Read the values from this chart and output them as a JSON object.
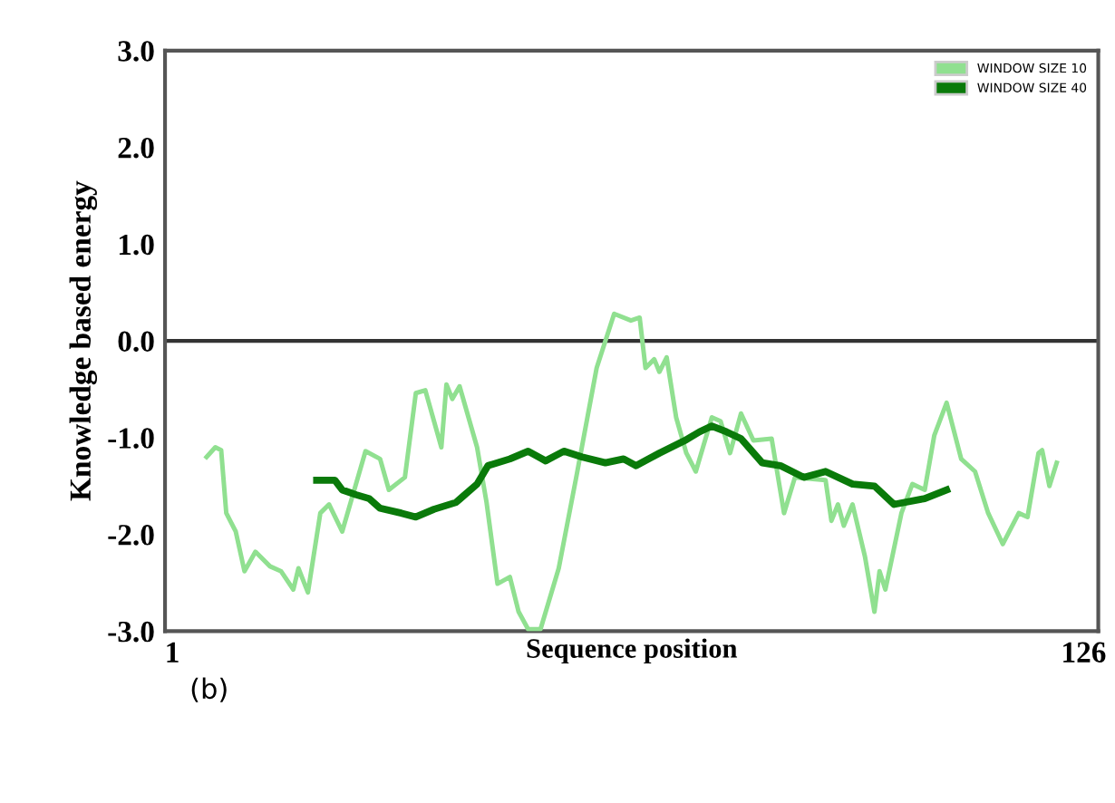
{
  "chart_data": {
    "type": "line",
    "xlabel": "Sequence position",
    "ylabel": "Knowledge based energy",
    "xlim": [
      0,
      128
    ],
    "xticks": [
      1,
      126
    ],
    "ylim": [
      -3,
      3
    ],
    "yticks": [
      {
        "value": 3,
        "label": "3.0"
      },
      {
        "value": 2,
        "label": "2.0"
      },
      {
        "value": 1,
        "label": "1.0"
      },
      {
        "value": 0,
        "label": "0.0"
      },
      {
        "value": -1,
        "label": "-1.0"
      },
      {
        "value": -2,
        "label": "-2.0"
      },
      {
        "value": -3,
        "label": "-3.0"
      }
    ],
    "grid": false,
    "legend": "top right",
    "marker": "none",
    "line_style": "solid",
    "ref_lines": [
      {
        "axis": "y",
        "value": 0,
        "label": null,
        "color": "#333333"
      }
    ],
    "annotations": [
      "(b)"
    ],
    "series": [
      {
        "name": "WINDOW SIZE 10",
        "color": "#90e090",
        "x": [
          5.7,
          6.9,
          7.7,
          8.4,
          9.7,
          10.9,
          12.4,
          14.4,
          15.9,
          17.6,
          18.3,
          19.6,
          21.3,
          22.5,
          24.3,
          27.5,
          29.5,
          30.7,
          32.9,
          34.4,
          35.7,
          37.9,
          38.6,
          39.4,
          40.4,
          42.8,
          44.1,
          45.6,
          47.3,
          48.5,
          49.8,
          51.5,
          54.0,
          56.4,
          59.2,
          61.6,
          63.9,
          65.1,
          65.9,
          67.1,
          67.8,
          68.8,
          70.1,
          71.5,
          72.8,
          75.0,
          76.2,
          77.5,
          79.0,
          80.7,
          83.2,
          84.9,
          86.4,
          90.6,
          91.4,
          92.3,
          93.1,
          94.3,
          96.0,
          97.3,
          98.0,
          98.8,
          101.0,
          102.5,
          104.2,
          105.5,
          107.2,
          109.2,
          111.1,
          112.9,
          114.9,
          117.1,
          118.3,
          119.8,
          120.3,
          121.3,
          122.3
        ],
        "values": [
          -1.2,
          -1.1,
          -1.13,
          -1.78,
          -1.97,
          -2.38,
          -2.18,
          -2.33,
          -2.38,
          -2.57,
          -2.35,
          -2.6,
          -1.78,
          -1.69,
          -1.97,
          -1.14,
          -1.22,
          -1.54,
          -1.41,
          -0.54,
          -0.51,
          -1.1,
          -0.45,
          -0.6,
          -0.47,
          -1.1,
          -1.67,
          -2.51,
          -2.44,
          -2.8,
          -2.98,
          -2.98,
          -2.35,
          -1.41,
          -0.28,
          0.28,
          0.21,
          0.24,
          -0.28,
          -0.19,
          -0.32,
          -0.17,
          -0.79,
          -1.16,
          -1.35,
          -0.79,
          -0.83,
          -1.16,
          -0.75,
          -1.03,
          -1.01,
          -1.78,
          -1.41,
          -1.44,
          -1.86,
          -1.69,
          -1.91,
          -1.69,
          -2.23,
          -2.8,
          -2.38,
          -2.57,
          -1.78,
          -1.48,
          -1.54,
          -0.98,
          -0.64,
          -1.22,
          -1.35,
          -1.78,
          -2.1,
          -1.78,
          -1.82,
          -1.16,
          -1.13,
          -1.5,
          -1.26
        ]
      },
      {
        "name": "WINDOW SIZE 40",
        "color": "#0a7a0a",
        "x": [
          20.8,
          23.3,
          24.3,
          26.2,
          28.0,
          29.5,
          32.4,
          34.4,
          36.9,
          39.9,
          42.8,
          44.3,
          47.3,
          49.8,
          52.2,
          54.7,
          57.2,
          60.4,
          62.9,
          64.6,
          67.8,
          71.3,
          73.3,
          75.0,
          77.0,
          79.0,
          81.9,
          84.4,
          87.6,
          90.6,
          94.3,
          97.3,
          100.0,
          104.2,
          107.2
        ],
        "values": [
          -1.44,
          -1.44,
          -1.54,
          -1.59,
          -1.63,
          -1.73,
          -1.78,
          -1.82,
          -1.74,
          -1.67,
          -1.48,
          -1.29,
          -1.22,
          -1.14,
          -1.24,
          -1.14,
          -1.2,
          -1.26,
          -1.22,
          -1.29,
          -1.16,
          -1.03,
          -0.94,
          -0.88,
          -0.94,
          -1.01,
          -1.26,
          -1.29,
          -1.41,
          -1.35,
          -1.48,
          -1.5,
          -1.69,
          -1.63,
          -1.54
        ]
      }
    ]
  }
}
